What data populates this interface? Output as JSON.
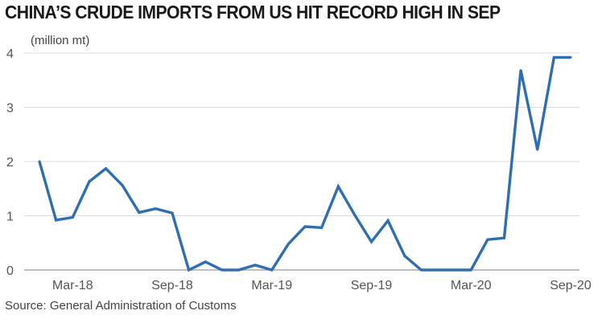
{
  "chart_data": {
    "type": "line",
    "title": "CHINA’S CRUDE IMPORTS FROM US HIT RECORD HIGH IN SEP",
    "ylabel": "(million mt)",
    "xlabel": "",
    "ylim": [
      0,
      4
    ],
    "yticks": [
      0,
      1,
      2,
      3,
      4
    ],
    "grid": true,
    "categories": [
      "Jan-18",
      "Feb-18",
      "Mar-18",
      "Apr-18",
      "May-18",
      "Jun-18",
      "Jul-18",
      "Aug-18",
      "Sep-18",
      "Oct-18",
      "Nov-18",
      "Dec-18",
      "Jan-19",
      "Feb-19",
      "Mar-19",
      "Apr-19",
      "May-19",
      "Jun-19",
      "Jul-19",
      "Aug-19",
      "Sep-19",
      "Oct-19",
      "Nov-19",
      "Dec-19",
      "Jan-20",
      "Feb-20",
      "Mar-20",
      "Apr-20",
      "May-20",
      "Jun-20",
      "Jul-20",
      "Aug-20",
      "Sep-20"
    ],
    "xtick_labels": [
      {
        "label": "Mar-18",
        "index": 2
      },
      {
        "label": "Sep-18",
        "index": 8
      },
      {
        "label": "Mar-19",
        "index": 14
      },
      {
        "label": "Sep-19",
        "index": 20
      },
      {
        "label": "Mar-20",
        "index": 26
      },
      {
        "label": "Sep-20",
        "index": 32
      }
    ],
    "series": [
      {
        "name": "Crude imports from US",
        "values": [
          2.0,
          0.92,
          0.97,
          1.63,
          1.87,
          1.56,
          1.06,
          1.13,
          1.05,
          0.0,
          0.15,
          0.0,
          0.0,
          0.09,
          0.0,
          0.48,
          0.8,
          0.78,
          1.54,
          1.01,
          0.52,
          0.91,
          0.26,
          0.0,
          0.0,
          0.0,
          0.0,
          0.56,
          0.59,
          3.68,
          2.22,
          3.92,
          3.92
        ]
      }
    ],
    "line_color": "#2f6eb3",
    "source": "Source: General Administration of Customs"
  }
}
